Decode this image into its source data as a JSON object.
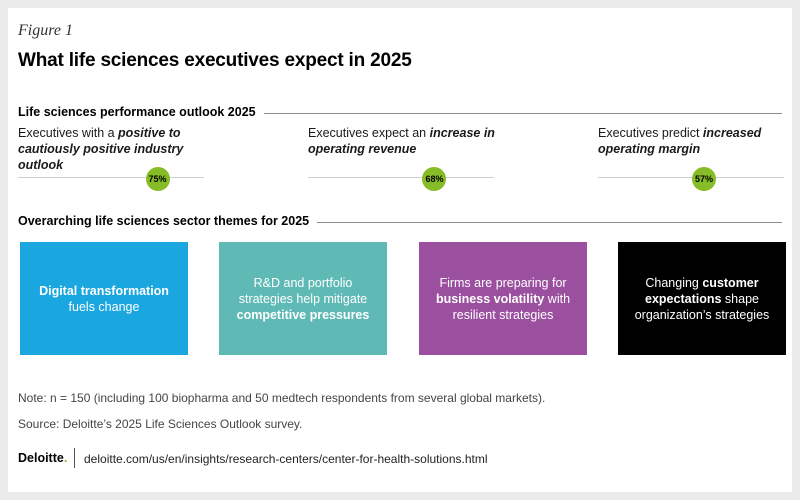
{
  "figure": {
    "label": "Figure 1",
    "title": "What life sciences executives expect in 2025"
  },
  "outlook": {
    "heading": "Life sciences performance outlook 2025",
    "stats": [
      {
        "pre": "Executives with a ",
        "em": "positive to cautiously positive industry outlook",
        "post": "",
        "value": "75%",
        "fraction": 0.75
      },
      {
        "pre": "Executives expect an ",
        "em": "increase in operating revenue",
        "post": "",
        "value": "68%",
        "fraction": 0.68
      },
      {
        "pre": "Executives predict ",
        "em": "increased operating margin",
        "post": "",
        "value": "57%",
        "fraction": 0.57
      }
    ]
  },
  "themes": {
    "heading": "Overarching life sciences sector themes for 2025",
    "items": [
      {
        "pre": "",
        "bold": "Digital transformation",
        "post": " fuels change",
        "color": "#1aa6df"
      },
      {
        "pre": "R&D and portfolio strategies help mitigate ",
        "bold": "competitive pressures",
        "post": "",
        "color": "#5fbab6"
      },
      {
        "pre": "Firms are preparing for ",
        "bold": "business volatility",
        "post": " with resilient strategies",
        "color": "#9b4f9f"
      },
      {
        "pre": "Changing ",
        "bold": "customer expectations",
        "post": " shape organization’s strategies",
        "color": "#000000"
      }
    ]
  },
  "notes": {
    "note": "Note: n = 150 (including 100 biopharma and 50 medtech respondents from several global markets).",
    "source": "Source: Deloitte’s 2025 Life Sciences Outlook survey."
  },
  "footer": {
    "logo": "Deloitte",
    "logo_dot": ".",
    "url": "deloitte.com/us/en/insights/research-centers/center-for-health-solutions.html"
  },
  "colors": {
    "badge": "#86bc25"
  }
}
